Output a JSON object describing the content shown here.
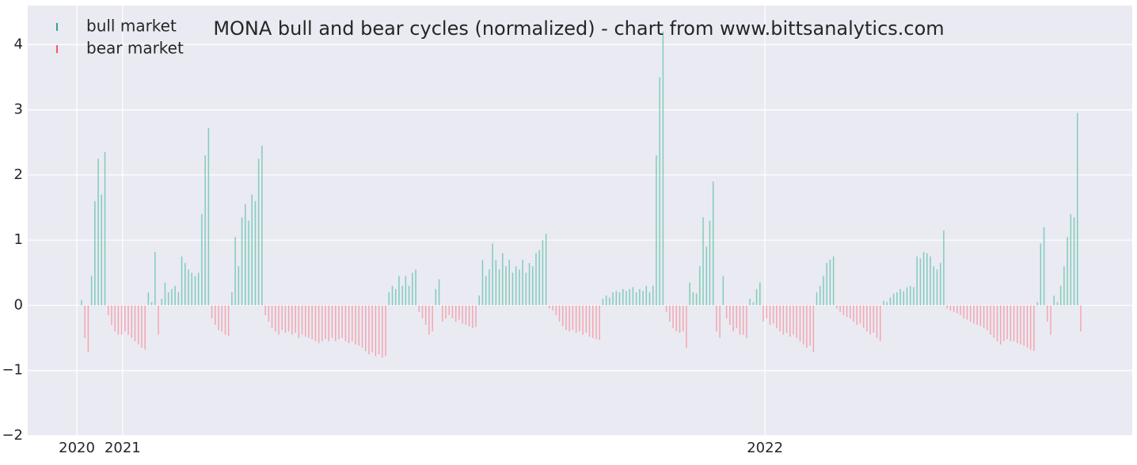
{
  "chart_data": {
    "type": "bar",
    "title": "MONA bull and bear cycles (normalized)  - chart from www.bittsanalytics.com",
    "legend": [
      {
        "name": "bull market",
        "color": "#2ca58d",
        "bar_color": "#7fcdbb"
      },
      {
        "name": "bear market",
        "color": "#f05a6e",
        "bar_color": "#f4a6b0"
      }
    ],
    "legend_position": "upper left",
    "grid": true,
    "xlim": [
      -16.1,
      314.4
    ],
    "xticks": [
      {
        "value": -1.4,
        "label": "2020"
      },
      {
        "value": 12.3,
        "label": "2021"
      },
      {
        "value": 204.5,
        "label": "2022"
      }
    ],
    "ylim": [
      -2,
      4.6
    ],
    "yticks": [
      {
        "value": -2,
        "label": "−2"
      },
      {
        "value": -1,
        "label": "−1"
      },
      0,
      1,
      2,
      3,
      4
    ],
    "x": [
      0,
      1,
      2,
      3,
      4,
      5,
      6,
      7,
      8,
      9,
      10,
      11,
      12,
      13,
      14,
      15,
      16,
      17,
      18,
      19,
      20,
      21,
      22,
      23,
      24,
      25,
      26,
      27,
      28,
      29,
      30,
      31,
      32,
      33,
      34,
      35,
      36,
      37,
      38,
      39,
      40,
      41,
      42,
      43,
      44,
      45,
      46,
      47,
      48,
      49,
      50,
      51,
      52,
      53,
      54,
      55,
      56,
      57,
      58,
      59,
      60,
      61,
      62,
      63,
      64,
      65,
      66,
      67,
      68,
      69,
      70,
      71,
      72,
      73,
      74,
      75,
      76,
      77,
      78,
      79,
      80,
      81,
      82,
      83,
      84,
      85,
      86,
      87,
      88,
      89,
      90,
      91,
      92,
      93,
      94,
      95,
      96,
      97,
      98,
      99,
      100,
      101,
      102,
      103,
      104,
      105,
      106,
      107,
      108,
      109,
      110,
      111,
      112,
      113,
      114,
      115,
      116,
      117,
      118,
      119,
      120,
      121,
      122,
      123,
      124,
      125,
      126,
      127,
      128,
      129,
      130,
      131,
      132,
      133,
      134,
      135,
      136,
      137,
      138,
      139,
      140,
      141,
      142,
      143,
      144,
      145,
      146,
      147,
      148,
      149,
      150,
      151,
      152,
      153,
      154,
      155,
      156,
      157,
      158,
      159,
      160,
      161,
      162,
      163,
      164,
      165,
      166,
      167,
      168,
      169,
      170,
      171,
      172,
      173,
      174,
      175,
      176,
      177,
      178,
      179,
      180,
      181,
      182,
      183,
      184,
      185,
      186,
      187,
      188,
      189,
      190,
      191,
      192,
      193,
      194,
      195,
      196,
      197,
      198,
      199,
      200,
      201,
      202,
      203,
      204,
      205,
      206,
      207,
      208,
      209,
      210,
      211,
      212,
      213,
      214,
      215,
      216,
      217,
      218,
      219,
      220,
      221,
      222,
      223,
      224,
      225,
      226,
      227,
      228,
      229,
      230,
      231,
      232,
      233,
      234,
      235,
      236,
      237,
      238,
      239,
      240,
      241,
      242,
      243,
      244,
      245,
      246,
      247,
      248,
      249,
      250,
      251,
      252,
      253,
      254,
      255,
      256,
      257,
      258,
      259,
      260,
      261,
      262,
      263,
      264,
      265,
      266,
      267,
      268,
      269,
      270,
      271,
      272,
      273,
      274,
      275,
      276,
      277,
      278,
      279,
      280,
      281,
      282,
      283,
      284,
      285,
      286,
      287,
      288,
      289,
      290,
      291,
      292,
      293,
      294,
      295,
      296,
      297,
      298,
      299
    ],
    "values": [
      0.08,
      -0.5,
      -0.72,
      0.45,
      1.6,
      2.25,
      1.7,
      2.35,
      -0.15,
      -0.3,
      -0.4,
      -0.45,
      -0.45,
      -0.4,
      -0.45,
      -0.5,
      -0.55,
      -0.6,
      -0.65,
      -0.68,
      0.2,
      0.05,
      0.82,
      -0.45,
      0.1,
      0.35,
      0.2,
      0.25,
      0.3,
      0.2,
      0.75,
      0.65,
      0.55,
      0.5,
      0.45,
      0.5,
      1.4,
      2.3,
      2.72,
      -0.2,
      -0.3,
      -0.38,
      -0.4,
      -0.45,
      -0.47,
      0.2,
      1.05,
      0.6,
      1.35,
      1.55,
      1.3,
      1.7,
      1.6,
      2.25,
      2.45,
      -0.15,
      -0.25,
      -0.35,
      -0.4,
      -0.45,
      -0.38,
      -0.42,
      -0.4,
      -0.45,
      -0.42,
      -0.5,
      -0.45,
      -0.48,
      -0.5,
      -0.52,
      -0.55,
      -0.58,
      -0.55,
      -0.52,
      -0.55,
      -0.5,
      -0.55,
      -0.52,
      -0.5,
      -0.55,
      -0.58,
      -0.55,
      -0.6,
      -0.62,
      -0.65,
      -0.7,
      -0.75,
      -0.72,
      -0.78,
      -0.75,
      -0.8,
      -0.78,
      0.2,
      0.3,
      0.25,
      0.45,
      0.3,
      0.45,
      0.3,
      0.5,
      0.55,
      -0.1,
      -0.2,
      -0.3,
      -0.45,
      -0.4,
      0.25,
      0.4,
      -0.25,
      -0.2,
      -0.15,
      -0.2,
      -0.25,
      -0.22,
      -0.28,
      -0.3,
      -0.32,
      -0.35,
      -0.33,
      0.15,
      0.7,
      0.45,
      0.55,
      0.95,
      0.7,
      0.55,
      0.8,
      0.6,
      0.7,
      0.5,
      0.6,
      0.55,
      0.7,
      0.5,
      0.65,
      0.6,
      0.8,
      0.85,
      1.0,
      1.1,
      -0.05,
      -0.08,
      -0.15,
      -0.25,
      -0.32,
      -0.38,
      -0.4,
      -0.38,
      -0.42,
      -0.4,
      -0.45,
      -0.42,
      -0.48,
      -0.5,
      -0.52,
      -0.53,
      0.1,
      0.15,
      0.12,
      0.2,
      0.22,
      0.2,
      0.25,
      0.22,
      0.25,
      0.28,
      0.2,
      0.25,
      0.22,
      0.3,
      0.2,
      0.3,
      2.3,
      3.5,
      4.2,
      -0.1,
      -0.25,
      -0.35,
      -0.4,
      -0.42,
      -0.4,
      -0.65,
      0.35,
      0.2,
      0.18,
      0.6,
      1.35,
      0.9,
      1.3,
      1.9,
      -0.4,
      -0.5,
      0.45,
      -0.2,
      -0.3,
      -0.4,
      -0.35,
      -0.45,
      -0.45,
      -0.5,
      0.1,
      0.05,
      0.25,
      0.35,
      -0.25,
      -0.2,
      -0.3,
      -0.28,
      -0.35,
      -0.4,
      -0.45,
      -0.42,
      -0.48,
      -0.45,
      -0.5,
      -0.55,
      -0.6,
      -0.65,
      -0.62,
      -0.72,
      0.2,
      0.3,
      0.45,
      0.65,
      0.7,
      0.75,
      -0.05,
      -0.1,
      -0.15,
      -0.18,
      -0.2,
      -0.25,
      -0.3,
      -0.28,
      -0.35,
      -0.4,
      -0.45,
      -0.42,
      -0.5,
      -0.55,
      0.07,
      0.05,
      0.12,
      0.18,
      0.2,
      0.25,
      0.22,
      0.28,
      0.3,
      0.28,
      0.75,
      0.72,
      0.82,
      0.8,
      0.75,
      0.6,
      0.55,
      0.65,
      1.15,
      -0.05,
      -0.08,
      -0.1,
      -0.12,
      -0.15,
      -0.2,
      -0.22,
      -0.25,
      -0.28,
      -0.3,
      -0.32,
      -0.35,
      -0.38,
      -0.45,
      -0.5,
      -0.55,
      -0.6,
      -0.55,
      -0.52,
      -0.55,
      -0.55,
      -0.58,
      -0.6,
      -0.62,
      -0.65,
      -0.68,
      -0.7,
      0.05,
      0.95,
      1.2,
      -0.25,
      -0.45,
      0.15,
      0.05,
      0.3,
      0.6,
      1.05,
      1.4,
      1.35,
      2.95,
      -0.4
    ]
  }
}
